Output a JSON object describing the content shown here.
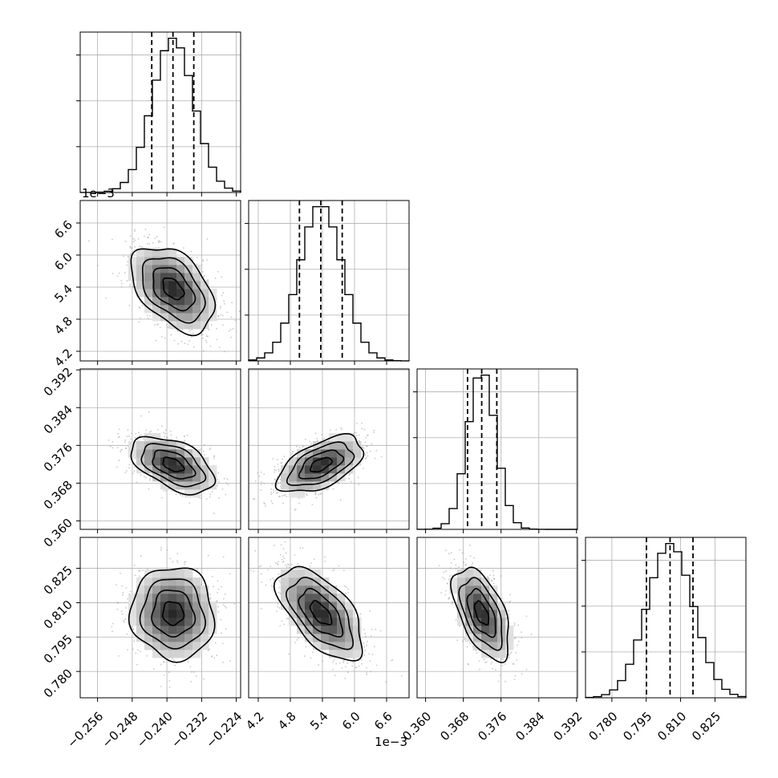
{
  "chart_data": {
    "type": "corner",
    "parameters": [
      {
        "index": 0,
        "median": -0.2386,
        "q16": -0.2435,
        "q84": -0.2338,
        "sigma": 0.0048,
        "range": [
          -0.26,
          -0.223
        ],
        "ticks": [
          -0.256,
          -0.248,
          -0.24,
          -0.232,
          -0.224
        ],
        "tick_labels": [
          "−0.256",
          "−0.248",
          "−0.240",
          "−0.232",
          "−0.224"
        ]
      },
      {
        "index": 1,
        "median": 0.00537,
        "q16": 0.00497,
        "q84": 0.00577,
        "sigma": 0.0004,
        "range": [
          0.00402,
          0.00702
        ],
        "ticks": [
          0.0042,
          0.0048,
          0.0054,
          0.006,
          0.0066
        ],
        "tick_labels": [
          "4.2",
          "4.8",
          "5.4",
          "6.0",
          "6.6"
        ],
        "offset_text": "1e−3"
      },
      {
        "index": 2,
        "median": 0.3719,
        "q16": 0.3689,
        "q84": 0.3751,
        "sigma": 0.003,
        "range": [
          0.3582,
          0.3922
        ],
        "ticks": [
          0.36,
          0.368,
          0.376,
          0.384,
          0.392
        ],
        "tick_labels": [
          "0.360",
          "0.368",
          "0.376",
          "0.384",
          "0.392"
        ]
      },
      {
        "index": 3,
        "median": 0.8054,
        "q16": 0.7951,
        "q84": 0.8154,
        "sigma": 0.0101,
        "range": [
          0.7685,
          0.8385
        ],
        "ticks": [
          0.78,
          0.795,
          0.81,
          0.825
        ],
        "tick_labels": [
          "0.780",
          "0.795",
          "0.810",
          "0.825"
        ]
      }
    ],
    "correlations": [
      {
        "pair": [
          0,
          1
        ],
        "rho": -0.45
      },
      {
        "pair": [
          0,
          2
        ],
        "rho": -0.5
      },
      {
        "pair": [
          1,
          2
        ],
        "rho": 0.55
      },
      {
        "pair": [
          0,
          3
        ],
        "rho": -0.05
      },
      {
        "pair": [
          1,
          3
        ],
        "rho": -0.6
      },
      {
        "pair": [
          2,
          3
        ],
        "rho": -0.55
      }
    ],
    "histogram_bins": 20,
    "quantiles": [
      0.16,
      0.5,
      0.84
    ],
    "contour_levels_sigma": [
      0.5,
      1.0,
      1.5,
      2.0
    ],
    "grid": true,
    "colors": {
      "axes": "#000000",
      "grid": "#b0b0b0",
      "points": "#9a9a9a",
      "contour": "#000000"
    }
  }
}
